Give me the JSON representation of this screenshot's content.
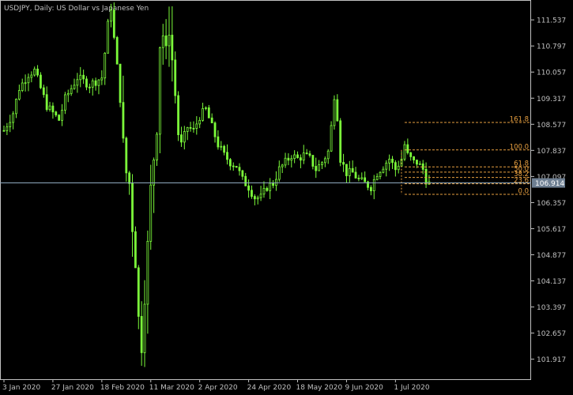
{
  "window": {
    "title": "USDJPY, Daily:  US Dollar vs Japanese Yen"
  },
  "colors": {
    "background": "#000000",
    "candle": "#7CFC3A",
    "axis": "#c0c0c0",
    "fibonacci": "#e8a040",
    "current_price_line": "#8faabf",
    "current_price_box": "#6e7f92"
  },
  "chart_data": {
    "type": "candlestick",
    "symbol": "USDJPY",
    "timeframe": "Daily",
    "ylim": [
      101.35,
      112.1
    ],
    "y_ticks": [
      "111.537",
      "110.797",
      "110.057",
      "109.317",
      "108.577",
      "107.837",
      "107.097",
      "106.357",
      "105.617",
      "104.877",
      "104.137",
      "103.397",
      "102.657",
      "101.917"
    ],
    "x_ticks": [
      {
        "label": "3 Jan 2020",
        "index": 0
      },
      {
        "label": "27 Jan 2020",
        "index": 16
      },
      {
        "label": "18 Feb 2020",
        "index": 32
      },
      {
        "label": "11 Mar 2020",
        "index": 48
      },
      {
        "label": "2 Apr 2020",
        "index": 64
      },
      {
        "label": "24 Apr 2020",
        "index": 80
      },
      {
        "label": "18 May 2020",
        "index": 96
      },
      {
        "label": "9 Jun 2020",
        "index": 112
      },
      {
        "label": "1 Jul 2020",
        "index": 128
      }
    ],
    "close_path": [
      [
        0,
        108.4
      ],
      [
        3,
        108.9
      ],
      [
        5,
        109.6
      ],
      [
        8,
        110.0
      ],
      [
        10,
        110.1
      ],
      [
        12,
        109.6
      ],
      [
        14,
        109.1
      ],
      [
        16,
        108.9
      ],
      [
        18,
        108.7
      ],
      [
        20,
        109.3
      ],
      [
        22,
        109.6
      ],
      [
        24,
        109.9
      ],
      [
        26,
        109.8
      ],
      [
        28,
        109.7
      ],
      [
        30,
        109.8
      ],
      [
        32,
        109.9
      ],
      [
        33,
        110.6
      ],
      [
        34,
        111.4
      ],
      [
        35,
        111.9
      ],
      [
        36,
        111.0
      ],
      [
        37,
        110.2
      ],
      [
        38,
        109.3
      ],
      [
        39,
        108.1
      ],
      [
        40,
        107.2
      ],
      [
        41,
        106.9
      ],
      [
        42,
        105.6
      ],
      [
        43,
        104.6
      ],
      [
        44,
        103.1
      ],
      [
        45,
        102.2
      ],
      [
        46,
        103.6
      ],
      [
        47,
        105.2
      ],
      [
        48,
        106.8
      ],
      [
        49,
        107.6
      ],
      [
        50,
        108.4
      ],
      [
        51,
        110.8
      ],
      [
        52,
        111.1
      ],
      [
        53,
        110.7
      ],
      [
        54,
        111.2
      ],
      [
        55,
        110.4
      ],
      [
        56,
        109.4
      ],
      [
        57,
        108.3
      ],
      [
        58,
        108.0
      ],
      [
        60,
        108.5
      ],
      [
        62,
        108.4
      ],
      [
        64,
        108.8
      ],
      [
        66,
        109.0
      ],
      [
        68,
        108.5
      ],
      [
        70,
        108.0
      ],
      [
        72,
        107.7
      ],
      [
        74,
        107.5
      ],
      [
        76,
        107.4
      ],
      [
        78,
        107.0
      ],
      [
        80,
        106.8
      ],
      [
        82,
        106.5
      ],
      [
        84,
        106.5
      ],
      [
        86,
        106.8
      ],
      [
        88,
        106.9
      ],
      [
        90,
        107.3
      ],
      [
        92,
        107.5
      ],
      [
        94,
        107.7
      ],
      [
        96,
        107.6
      ],
      [
        98,
        107.7
      ],
      [
        100,
        107.6
      ],
      [
        102,
        107.3
      ],
      [
        104,
        107.5
      ],
      [
        106,
        107.8
      ],
      [
        107,
        108.5
      ],
      [
        108,
        109.4
      ],
      [
        109,
        108.8
      ],
      [
        110,
        107.6
      ],
      [
        112,
        107.2
      ],
      [
        114,
        107.2
      ],
      [
        116,
        107.0
      ],
      [
        118,
        106.9
      ],
      [
        120,
        106.8
      ],
      [
        122,
        107.2
      ],
      [
        124,
        107.4
      ],
      [
        126,
        107.6
      ],
      [
        128,
        107.3
      ],
      [
        130,
        107.6
      ],
      [
        131,
        108.0
      ],
      [
        132,
        107.7
      ],
      [
        134,
        107.5
      ],
      [
        135,
        107.5
      ],
      [
        137,
        107.3
      ],
      [
        138,
        107.0
      ],
      [
        139,
        106.9
      ]
    ],
    "last_price": 106.914,
    "current_price_label": "106.914",
    "fibonacci": {
      "start_index": 131,
      "levels": [
        {
          "label": "161.8",
          "value": 108.63
        },
        {
          "label": "100.0",
          "value": 107.85
        },
        {
          "label": "61.8",
          "value": 107.37
        },
        {
          "label": "50.0",
          "value": 107.22
        },
        {
          "label": "38.2",
          "value": 107.07
        },
        {
          "label": "23.6",
          "value": 106.89
        },
        {
          "label": "0.0",
          "value": 106.59
        }
      ]
    }
  }
}
